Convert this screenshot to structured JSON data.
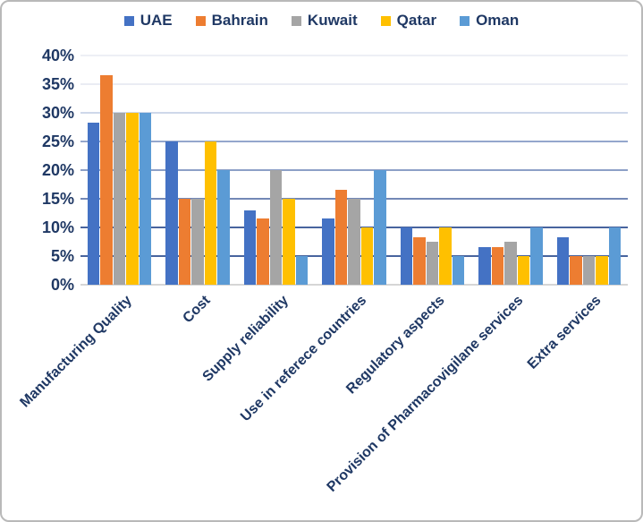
{
  "chart_data": {
    "type": "bar",
    "title": "",
    "xlabel": "",
    "ylabel": "",
    "ylim": [
      0,
      40
    ],
    "y_tick_step": 5,
    "y_ticks": [
      "0%",
      "5%",
      "10%",
      "15%",
      "20%",
      "25%",
      "30%",
      "35%",
      "40%"
    ],
    "grid": true,
    "legend_position": "top",
    "categories": [
      "Manufacturing Quality",
      "Cost",
      "Supply reliability",
      "Use in referece countries",
      "Regulatory aspects",
      "Provision of Pharmacovigilane services",
      "Extra services"
    ],
    "series": [
      {
        "name": "UAE",
        "color": "#4472C4",
        "values": [
          28.3,
          25,
          13,
          11.5,
          10,
          6.5,
          8.3
        ]
      },
      {
        "name": "Bahrain",
        "color": "#ED7D31",
        "values": [
          36.5,
          15,
          11.5,
          16.5,
          8.3,
          6.5,
          5
        ]
      },
      {
        "name": "Kuwait",
        "color": "#A5A5A5",
        "values": [
          30,
          15,
          20,
          15,
          7.5,
          7.5,
          5
        ]
      },
      {
        "name": "Qatar",
        "color": "#FFC000",
        "values": [
          30,
          25,
          15,
          10,
          10,
          5,
          5
        ]
      },
      {
        "name": "Oman",
        "color": "#5B9BD5",
        "values": [
          30,
          20,
          5,
          20,
          5,
          10,
          10
        ]
      }
    ]
  },
  "colors": {
    "text": "#1F3864",
    "figure_border": "#b9b9b9",
    "axis_baseline": "#d6d6d6"
  }
}
